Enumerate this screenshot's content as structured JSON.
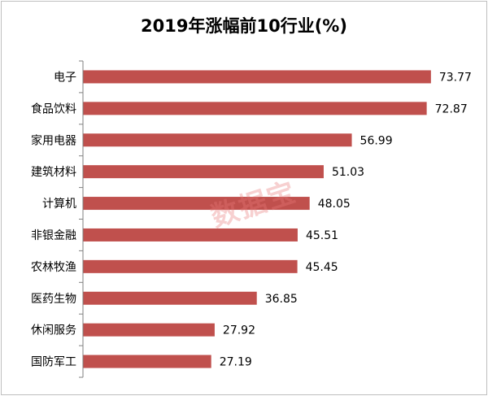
{
  "chart_data": {
    "type": "bar",
    "orientation": "horizontal",
    "title": "2019年涨幅前10行业(%)",
    "categories": [
      "电子",
      "食品饮料",
      "家用电器",
      "建筑材料",
      "计算机",
      "非银金融",
      "农林牧渔",
      "医药生物",
      "休闲服务",
      "国防军工"
    ],
    "values": [
      73.77,
      72.87,
      56.99,
      51.03,
      48.05,
      45.51,
      45.45,
      36.85,
      27.92,
      27.19
    ],
    "xlabel": "",
    "ylabel": "",
    "xlim": [
      0,
      80
    ],
    "grid": false,
    "bar_color": "#c0504d",
    "value_labels": [
      "73.77",
      "72.87",
      "56.99",
      "51.03",
      "48.05",
      "45.51",
      "45.45",
      "36.85",
      "27.92",
      "27.19"
    ]
  },
  "watermark": "数据宝"
}
